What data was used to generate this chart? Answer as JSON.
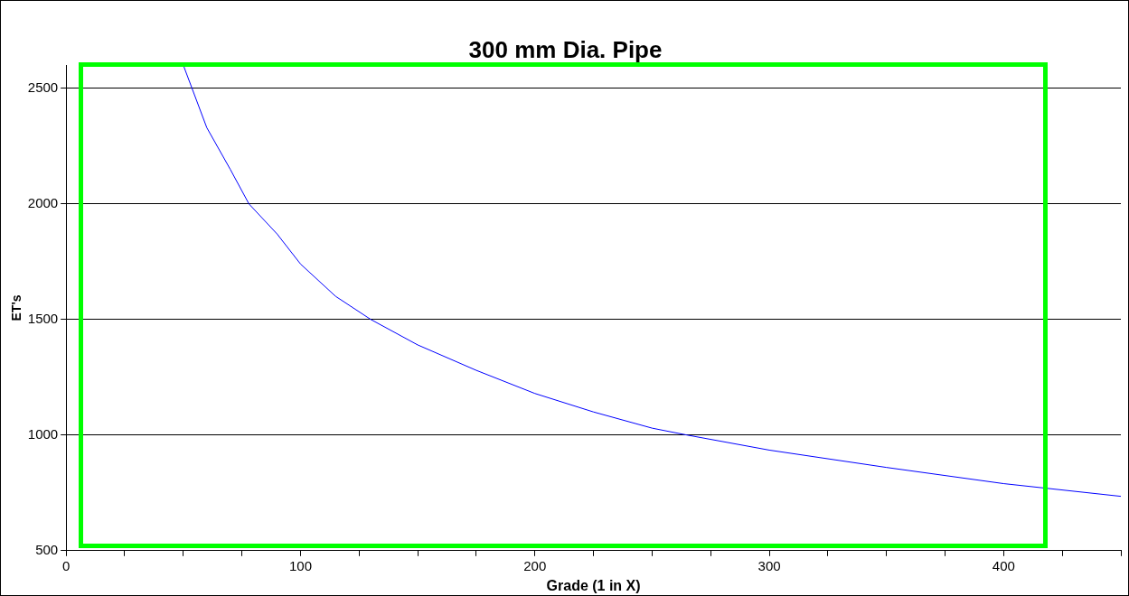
{
  "chart_data": {
    "type": "line",
    "title": "300 mm Dia. Pipe",
    "xlabel": "Grade (1 in X)",
    "ylabel": "ET's",
    "x": [
      50,
      60,
      70,
      78,
      90,
      100,
      115,
      130,
      150,
      175,
      200,
      225,
      250,
      265,
      300,
      350,
      400,
      450
    ],
    "series": [
      {
        "color": "#0000ff",
        "values": [
          2600,
          2330,
          2150,
          2000,
          1870,
          1740,
          1600,
          1500,
          1390,
          1280,
          1180,
          1100,
          1030,
          1000,
          935,
          860,
          790,
          735
        ]
      }
    ],
    "xlim": [
      0,
      450
    ],
    "ylim": [
      500,
      2600
    ],
    "xticks": [
      0,
      {
        "value": 25,
        "label": null
      },
      {
        "value": 50,
        "label": null
      },
      {
        "value": 75,
        "label": null
      },
      100,
      {
        "value": 125,
        "label": null
      },
      {
        "value": 150,
        "label": null
      },
      {
        "value": 175,
        "label": null
      },
      200,
      {
        "value": 225,
        "label": null
      },
      {
        "value": 250,
        "label": null
      },
      {
        "value": 275,
        "label": null
      },
      300,
      {
        "value": 325,
        "label": null
      },
      {
        "value": 350,
        "label": null
      },
      {
        "value": 375,
        "label": null
      },
      400,
      {
        "value": 425,
        "label": null
      },
      {
        "value": 450,
        "label": null
      }
    ],
    "yticks": [
      500,
      1000,
      1500,
      2000,
      2500
    ],
    "grid": "y",
    "legend": false,
    "marker": "none",
    "line_style": "solid"
  }
}
